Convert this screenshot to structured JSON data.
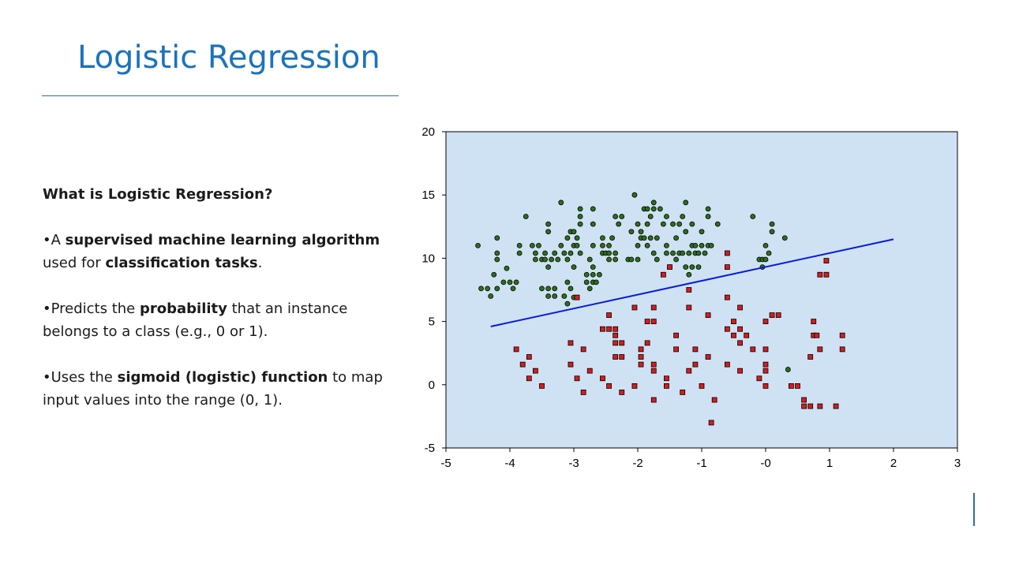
{
  "slide": {
    "title": "Logistic Regression",
    "heading": "What is Logistic Regression?",
    "bullet1": {
      "prefix": "•A ",
      "bold1": "supervised machine learning algorithm",
      "mid": " used for ",
      "bold2": "classification tasks",
      "suffix": "."
    },
    "bullet2": {
      "prefix": "•Predicts the ",
      "bold1": "probability",
      "suffix": " that an instance belongs to a class (e.g., 0 or 1)."
    },
    "bullet3": {
      "prefix": "•Uses the ",
      "bold1": "sigmoid (logistic) function",
      "suffix": " to map input values into the range (0, 1)."
    }
  },
  "colors": {
    "title": "#1a73bd",
    "plot_bg": "#cfe2f3",
    "class0": "#2e6e1f",
    "class1": "#d81b1b",
    "line": "#0b1ae0"
  },
  "chart_data": {
    "type": "scatter",
    "xlim": [
      -5,
      3
    ],
    "ylim": [
      -5,
      20
    ],
    "xticks": [
      "-5",
      "-4",
      "-3",
      "-2",
      "-1",
      "-0",
      "1",
      "2",
      "3"
    ],
    "yticks": [
      "-5",
      "0",
      "5",
      "10",
      "15",
      "20"
    ],
    "grid": false,
    "series": [
      {
        "marker": "circle",
        "points": [
          [
            -4.5,
            11.0
          ],
          [
            -4.45,
            7.6
          ],
          [
            -4.35,
            7.6
          ],
          [
            -4.3,
            7.0
          ],
          [
            -4.25,
            8.7
          ],
          [
            -4.2,
            7.6
          ],
          [
            -4.2,
            11.6
          ],
          [
            -4.2,
            10.4
          ],
          [
            -4.2,
            9.9
          ],
          [
            -4.1,
            8.1
          ],
          [
            -4.05,
            9.2
          ],
          [
            -4.0,
            8.1
          ],
          [
            -3.95,
            7.6
          ],
          [
            -3.9,
            8.1
          ],
          [
            -3.85,
            11.0
          ],
          [
            -3.85,
            10.4
          ],
          [
            -3.75,
            13.3
          ],
          [
            -3.65,
            11.0
          ],
          [
            -3.6,
            10.4
          ],
          [
            -3.6,
            9.9
          ],
          [
            -3.55,
            11.0
          ],
          [
            -3.5,
            9.9
          ],
          [
            -3.5,
            7.6
          ],
          [
            -3.45,
            9.9
          ],
          [
            -3.45,
            10.4
          ],
          [
            -3.4,
            7.0
          ],
          [
            -3.4,
            7.6
          ],
          [
            -3.4,
            9.3
          ],
          [
            -3.4,
            12.1
          ],
          [
            -3.4,
            12.7
          ],
          [
            -3.35,
            9.9
          ],
          [
            -3.3,
            10.4
          ],
          [
            -3.3,
            7.0
          ],
          [
            -3.3,
            7.6
          ],
          [
            -3.25,
            9.9
          ],
          [
            -3.2,
            14.4
          ],
          [
            -3.2,
            11.0
          ],
          [
            -3.15,
            7.0
          ],
          [
            -3.15,
            10.4
          ],
          [
            -3.1,
            9.9
          ],
          [
            -3.1,
            11.6
          ],
          [
            -3.1,
            8.1
          ],
          [
            -3.1,
            6.4
          ],
          [
            -3.05,
            12.1
          ],
          [
            -3.05,
            10.4
          ],
          [
            -3.05,
            7.6
          ],
          [
            -3.0,
            11.0
          ],
          [
            -3.0,
            9.3
          ],
          [
            -3.0,
            12.1
          ],
          [
            -3.0,
            6.9
          ],
          [
            -2.95,
            11.6
          ],
          [
            -2.95,
            11.0
          ],
          [
            -2.9,
            12.7
          ],
          [
            -2.9,
            13.3
          ],
          [
            -2.9,
            13.9
          ],
          [
            -2.9,
            10.4
          ],
          [
            -2.8,
            8.1
          ],
          [
            -2.8,
            8.7
          ],
          [
            -2.75,
            7.6
          ],
          [
            -2.75,
            9.9
          ],
          [
            -2.7,
            8.1
          ],
          [
            -2.7,
            8.7
          ],
          [
            -2.7,
            9.3
          ],
          [
            -2.7,
            11.0
          ],
          [
            -2.7,
            12.7
          ],
          [
            -2.7,
            13.9
          ],
          [
            -2.65,
            8.1
          ],
          [
            -2.6,
            8.7
          ],
          [
            -2.55,
            10.4
          ],
          [
            -2.55,
            11.0
          ],
          [
            -2.55,
            11.6
          ],
          [
            -2.5,
            10.4
          ],
          [
            -2.45,
            10.4
          ],
          [
            -2.45,
            9.9
          ],
          [
            -2.45,
            11.0
          ],
          [
            -2.4,
            11.6
          ],
          [
            -2.35,
            9.9
          ],
          [
            -2.35,
            10.4
          ],
          [
            -2.35,
            13.3
          ],
          [
            -2.3,
            12.7
          ],
          [
            -2.25,
            13.3
          ],
          [
            -2.15,
            9.9
          ],
          [
            -2.1,
            9.9
          ],
          [
            -2.1,
            12.1
          ],
          [
            -2.05,
            15.0
          ],
          [
            -2.0,
            9.9
          ],
          [
            -2.0,
            11.0
          ],
          [
            -2.0,
            12.7
          ],
          [
            -1.95,
            11.6
          ],
          [
            -1.95,
            12.1
          ],
          [
            -1.9,
            13.9
          ],
          [
            -1.9,
            11.6
          ],
          [
            -1.85,
            12.7
          ],
          [
            -1.85,
            11.0
          ],
          [
            -1.85,
            13.9
          ],
          [
            -1.8,
            11.6
          ],
          [
            -1.8,
            13.3
          ],
          [
            -1.75,
            10.4
          ],
          [
            -1.75,
            13.9
          ],
          [
            -1.75,
            14.4
          ],
          [
            -1.7,
            11.6
          ],
          [
            -1.7,
            9.9
          ],
          [
            -1.65,
            13.9
          ],
          [
            -1.6,
            12.7
          ],
          [
            -1.55,
            13.3
          ],
          [
            -1.55,
            10.4
          ],
          [
            -1.55,
            11.0
          ],
          [
            -1.5,
            9.3
          ],
          [
            -1.45,
            12.7
          ],
          [
            -1.45,
            10.4
          ],
          [
            -1.4,
            11.6
          ],
          [
            -1.4,
            9.9
          ],
          [
            -1.35,
            12.7
          ],
          [
            -1.35,
            10.4
          ],
          [
            -1.3,
            10.4
          ],
          [
            -1.3,
            13.3
          ],
          [
            -1.25,
            12.1
          ],
          [
            -1.25,
            9.3
          ],
          [
            -1.25,
            14.4
          ],
          [
            -1.2,
            8.7
          ],
          [
            -1.2,
            10.4
          ],
          [
            -1.15,
            12.7
          ],
          [
            -1.15,
            11.0
          ],
          [
            -1.15,
            9.3
          ],
          [
            -1.1,
            10.4
          ],
          [
            -1.1,
            11.0
          ],
          [
            -1.05,
            10.4
          ],
          [
            -1.05,
            9.3
          ],
          [
            -1.0,
            11.0
          ],
          [
            -1.0,
            12.1
          ],
          [
            -0.95,
            10.4
          ],
          [
            -0.9,
            11.0
          ],
          [
            -0.9,
            13.3
          ],
          [
            -0.9,
            13.9
          ],
          [
            -0.85,
            11.0
          ],
          [
            -0.75,
            12.7
          ],
          [
            -0.2,
            13.3
          ],
          [
            -0.1,
            9.9
          ],
          [
            -0.05,
            9.9
          ],
          [
            -0.05,
            9.3
          ],
          [
            0.0,
            9.9
          ],
          [
            0.05,
            10.4
          ],
          [
            0.1,
            12.1
          ],
          [
            0.1,
            12.7
          ],
          [
            0.3,
            11.6
          ],
          [
            0.0,
            11.0
          ],
          [
            0.35,
            1.2
          ]
        ]
      },
      {
        "marker": "square",
        "points": [
          [
            -3.9,
            2.8
          ],
          [
            -3.8,
            1.6
          ],
          [
            -3.7,
            2.2
          ],
          [
            -3.7,
            0.5
          ],
          [
            -3.6,
            1.1
          ],
          [
            -3.5,
            -0.1
          ],
          [
            -3.05,
            3.3
          ],
          [
            -3.05,
            1.6
          ],
          [
            -2.95,
            6.9
          ],
          [
            -2.95,
            0.5
          ],
          [
            -2.85,
            -0.6
          ],
          [
            -2.85,
            2.8
          ],
          [
            -2.75,
            1.1
          ],
          [
            -2.55,
            4.4
          ],
          [
            -2.55,
            0.5
          ],
          [
            -2.45,
            4.4
          ],
          [
            -2.45,
            5.5
          ],
          [
            -2.45,
            -0.1
          ],
          [
            -2.35,
            4.4
          ],
          [
            -2.35,
            3.9
          ],
          [
            -2.35,
            3.3
          ],
          [
            -2.35,
            2.2
          ],
          [
            -2.25,
            3.3
          ],
          [
            -2.25,
            2.2
          ],
          [
            -2.25,
            -0.6
          ],
          [
            -2.05,
            6.1
          ],
          [
            -2.05,
            -0.1
          ],
          [
            -1.95,
            2.8
          ],
          [
            -1.95,
            2.2
          ],
          [
            -1.95,
            1.6
          ],
          [
            -1.85,
            3.3
          ],
          [
            -1.85,
            5.0
          ],
          [
            -1.75,
            5.0
          ],
          [
            -1.75,
            6.1
          ],
          [
            -1.75,
            1.6
          ],
          [
            -1.75,
            1.1
          ],
          [
            -1.75,
            -1.2
          ],
          [
            -1.6,
            8.7
          ],
          [
            -1.5,
            9.3
          ],
          [
            -1.55,
            -0.1
          ],
          [
            -1.55,
            0.5
          ],
          [
            -1.4,
            3.9
          ],
          [
            -1.4,
            2.8
          ],
          [
            -1.3,
            -0.6
          ],
          [
            -1.2,
            7.5
          ],
          [
            -1.2,
            6.1
          ],
          [
            -1.2,
            1.1
          ],
          [
            -1.1,
            1.6
          ],
          [
            -1.1,
            2.8
          ],
          [
            -1.0,
            -0.1
          ],
          [
            -0.9,
            5.5
          ],
          [
            -0.9,
            2.2
          ],
          [
            -0.85,
            -3.0
          ],
          [
            -0.8,
            -1.2
          ],
          [
            -0.6,
            10.4
          ],
          [
            -0.6,
            9.3
          ],
          [
            -0.6,
            6.9
          ],
          [
            -0.6,
            4.4
          ],
          [
            -0.6,
            1.6
          ],
          [
            -0.5,
            3.9
          ],
          [
            -0.5,
            5.0
          ],
          [
            -0.4,
            6.1
          ],
          [
            -0.4,
            4.4
          ],
          [
            -0.4,
            3.3
          ],
          [
            -0.4,
            1.1
          ],
          [
            -0.3,
            3.9
          ],
          [
            -0.2,
            2.8
          ],
          [
            -0.1,
            0.5
          ],
          [
            0.0,
            2.8
          ],
          [
            0.0,
            1.6
          ],
          [
            0.0,
            1.1
          ],
          [
            0.0,
            -0.1
          ],
          [
            0.0,
            5.0
          ],
          [
            0.1,
            5.5
          ],
          [
            0.2,
            5.5
          ],
          [
            0.4,
            -0.1
          ],
          [
            0.5,
            -0.1
          ],
          [
            0.6,
            -1.2
          ],
          [
            0.6,
            -1.7
          ],
          [
            0.7,
            -1.7
          ],
          [
            0.7,
            2.2
          ],
          [
            0.75,
            5.0
          ],
          [
            0.75,
            3.9
          ],
          [
            0.8,
            3.9
          ],
          [
            0.85,
            8.7
          ],
          [
            0.85,
            2.8
          ],
          [
            0.85,
            -1.7
          ],
          [
            0.95,
            8.7
          ],
          [
            0.95,
            9.8
          ],
          [
            1.1,
            -1.7
          ],
          [
            1.2,
            3.9
          ],
          [
            1.2,
            2.8
          ]
        ]
      }
    ],
    "fit_line": {
      "x": [
        -4.3,
        2.0
      ],
      "y": [
        4.6,
        11.5
      ]
    }
  }
}
